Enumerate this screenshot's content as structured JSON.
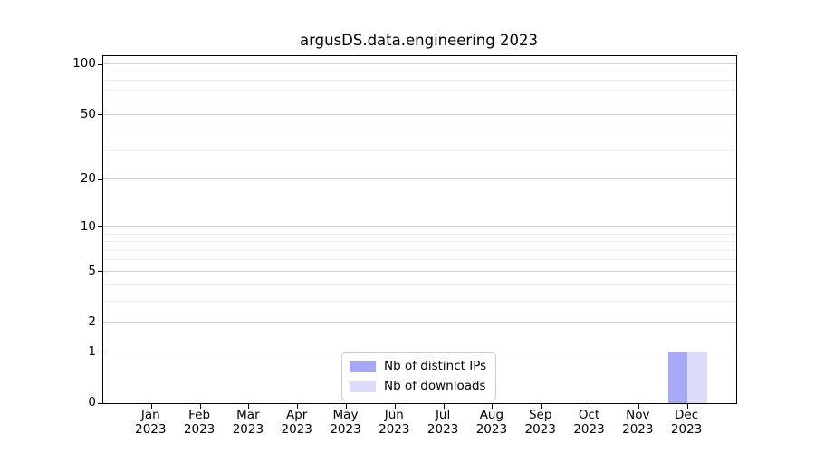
{
  "figure": {
    "title": "argusDS.data.engineering 2023"
  },
  "legend": {
    "entries": [
      {
        "label": "Nb of distinct IPs",
        "color": "#a8a8f8"
      },
      {
        "label": "Nb of downloads",
        "color": "#dbdbfa"
      }
    ]
  },
  "chart_data": {
    "type": "bar",
    "title": "argusDS.data.engineering 2023",
    "categories": [
      "Jan 2023",
      "Feb 2023",
      "Mar 2023",
      "Apr 2023",
      "May 2023",
      "Jun 2023",
      "Jul 2023",
      "Aug 2023",
      "Sep 2023",
      "Oct 2023",
      "Nov 2023",
      "Dec 2023"
    ],
    "x_tick_month": [
      "Jan",
      "Feb",
      "Mar",
      "Apr",
      "May",
      "Jun",
      "Jul",
      "Aug",
      "Sep",
      "Oct",
      "Nov",
      "Dec"
    ],
    "x_tick_year": "2023",
    "series": [
      {
        "name": "Nb of distinct IPs",
        "color": "#a8a8f8",
        "values": [
          0,
          0,
          0,
          0,
          0,
          0,
          0,
          0,
          0,
          0,
          0,
          1
        ]
      },
      {
        "name": "Nb of downloads",
        "color": "#dbdbfa",
        "values": [
          0,
          0,
          0,
          0,
          0,
          0,
          0,
          0,
          0,
          0,
          0,
          1
        ]
      }
    ],
    "xlabel": "",
    "ylabel": "",
    "yscale": "log1p",
    "yticks": [
      0,
      1,
      2,
      5,
      10,
      20,
      50,
      100
    ],
    "yticks_minor": [
      3,
      4,
      6,
      7,
      8,
      9,
      30,
      40,
      60,
      70,
      80,
      90
    ],
    "ylim": [
      0,
      112
    ],
    "grid": true,
    "legend_position": "lower center"
  }
}
